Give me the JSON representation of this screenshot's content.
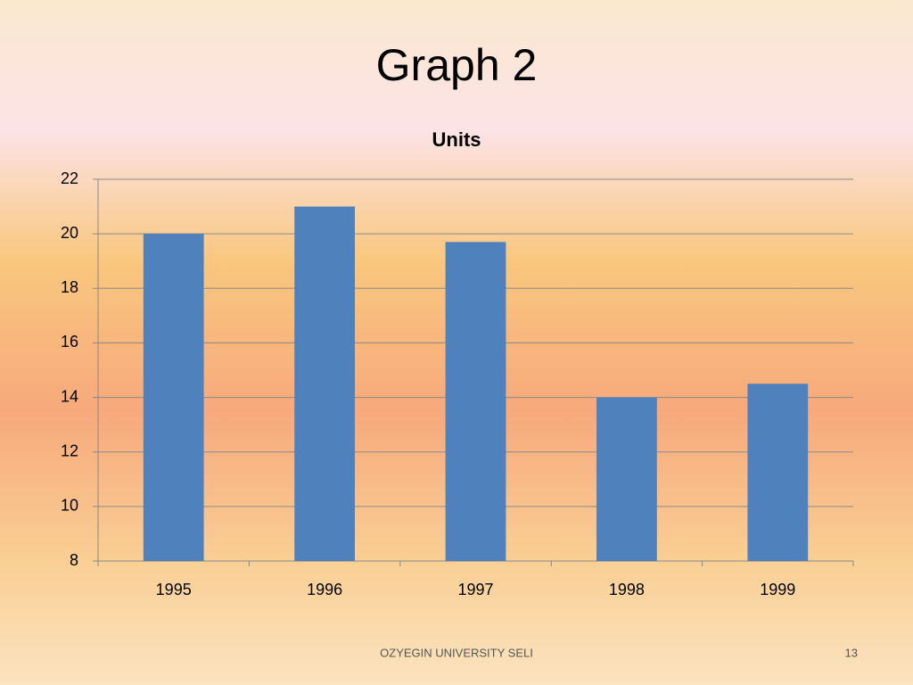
{
  "slide": {
    "title": "Graph 2",
    "footer": "OZYEGIN UNIVERSITY SELI",
    "page_number": "13"
  },
  "chart_data": {
    "type": "bar",
    "title": "Units",
    "categories": [
      "1995",
      "1996",
      "1997",
      "1998",
      "1999"
    ],
    "values": [
      20,
      21,
      19.7,
      14,
      14.5
    ],
    "color": "#4f81bd",
    "ylim": [
      8,
      22
    ],
    "yticks": [
      8,
      10,
      12,
      14,
      16,
      18,
      20,
      22
    ],
    "grid": true
  }
}
